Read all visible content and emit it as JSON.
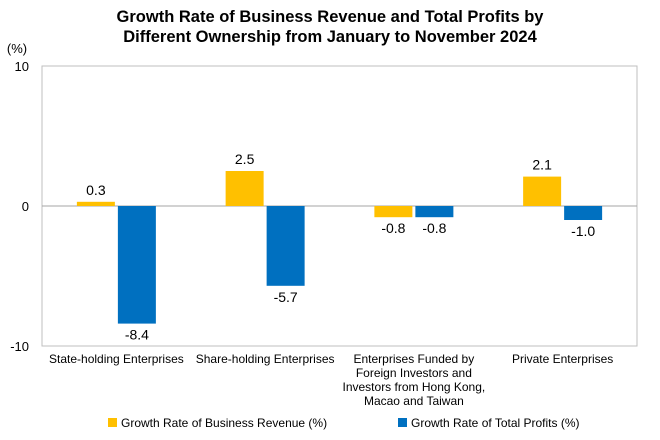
{
  "chart_data": {
    "type": "bar",
    "title_lines": [
      "Growth Rate of Business Revenue and Total Profits by",
      "Different Ownership from January to November 2024"
    ],
    "ylabel": "(%)",
    "ylim": [
      -10,
      10
    ],
    "yticks": [
      "10",
      "0",
      "-10"
    ],
    "yticks_values": [
      10,
      0,
      -10
    ],
    "grid": false,
    "legend_position": "bottom",
    "categories": [
      [
        "State-holding Enterprises"
      ],
      [
        "Share-holding Enterprises"
      ],
      [
        "Enterprises Funded by",
        "Foreign Investors and",
        "Investors from Hong Kong,",
        "Macao and Taiwan"
      ],
      [
        "Private Enterprises"
      ]
    ],
    "series": [
      {
        "name": "Growth Rate of Business Revenue (%)",
        "color": "#FFC000",
        "values": [
          0.3,
          2.5,
          -0.8,
          2.1
        ],
        "labels": [
          "0.3",
          "2.5",
          "-0.8",
          "2.1"
        ]
      },
      {
        "name": "Growth Rate of Total Profits (%)",
        "color": "#0070C0",
        "values": [
          -8.4,
          -5.7,
          -0.8,
          -1.0
        ],
        "labels": [
          "-8.4",
          "-5.7",
          "-0.8",
          "-1.0"
        ]
      }
    ]
  }
}
